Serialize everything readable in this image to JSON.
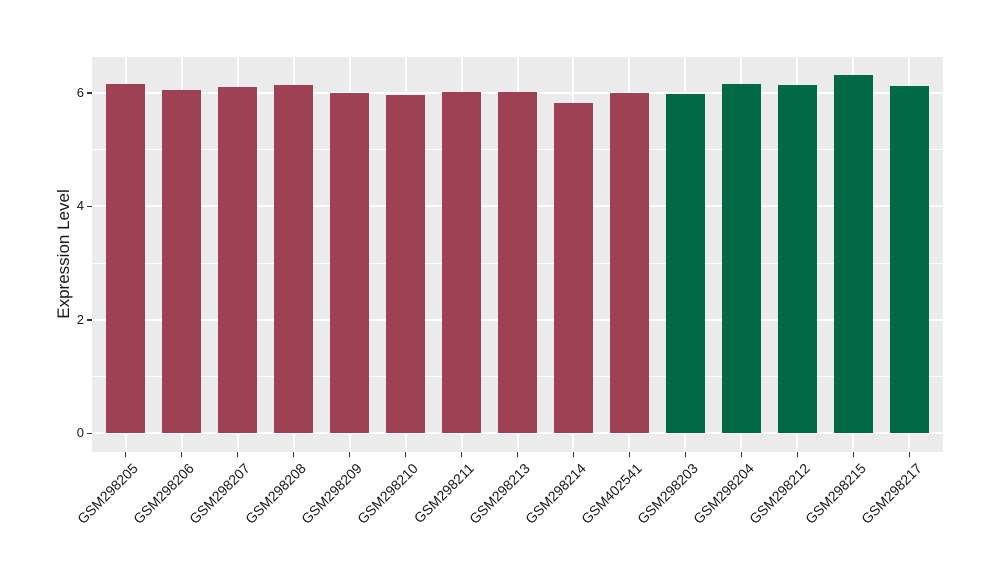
{
  "chart_data": {
    "type": "bar",
    "title": "",
    "xlabel": "",
    "ylabel": "Expression Level",
    "categories": [
      "GSM298205",
      "GSM298206",
      "GSM298207",
      "GSM298208",
      "GSM298209",
      "GSM298210",
      "GSM298211",
      "GSM298213",
      "GSM298214",
      "GSM402541",
      "GSM298203",
      "GSM298204",
      "GSM298212",
      "GSM298215",
      "GSM298217"
    ],
    "values": [
      6.16,
      6.05,
      6.11,
      6.13,
      5.99,
      5.96,
      6.01,
      6.01,
      5.82,
      6.0,
      5.97,
      6.15,
      6.14,
      6.31,
      6.12
    ],
    "groups": [
      0,
      0,
      0,
      0,
      0,
      0,
      0,
      0,
      0,
      0,
      1,
      1,
      1,
      1,
      1
    ],
    "group_colors": [
      "#9E4154",
      "#006946"
    ],
    "yticks": [
      0,
      2,
      4,
      6
    ],
    "ytick_labels": [
      "0",
      "2",
      "4",
      "6"
    ],
    "minor_yticks": [
      1,
      3,
      5
    ],
    "ylim": [
      -0.33,
      6.63
    ],
    "x_label_angle": 45,
    "bar_width_ratio": 0.7,
    "grid": true,
    "legend": "none",
    "panel_bg": "#EBEBEB",
    "grid_color": "#FFFFFF",
    "axis_text_color": "#1A1A1A",
    "tick_color": "#333333"
  }
}
